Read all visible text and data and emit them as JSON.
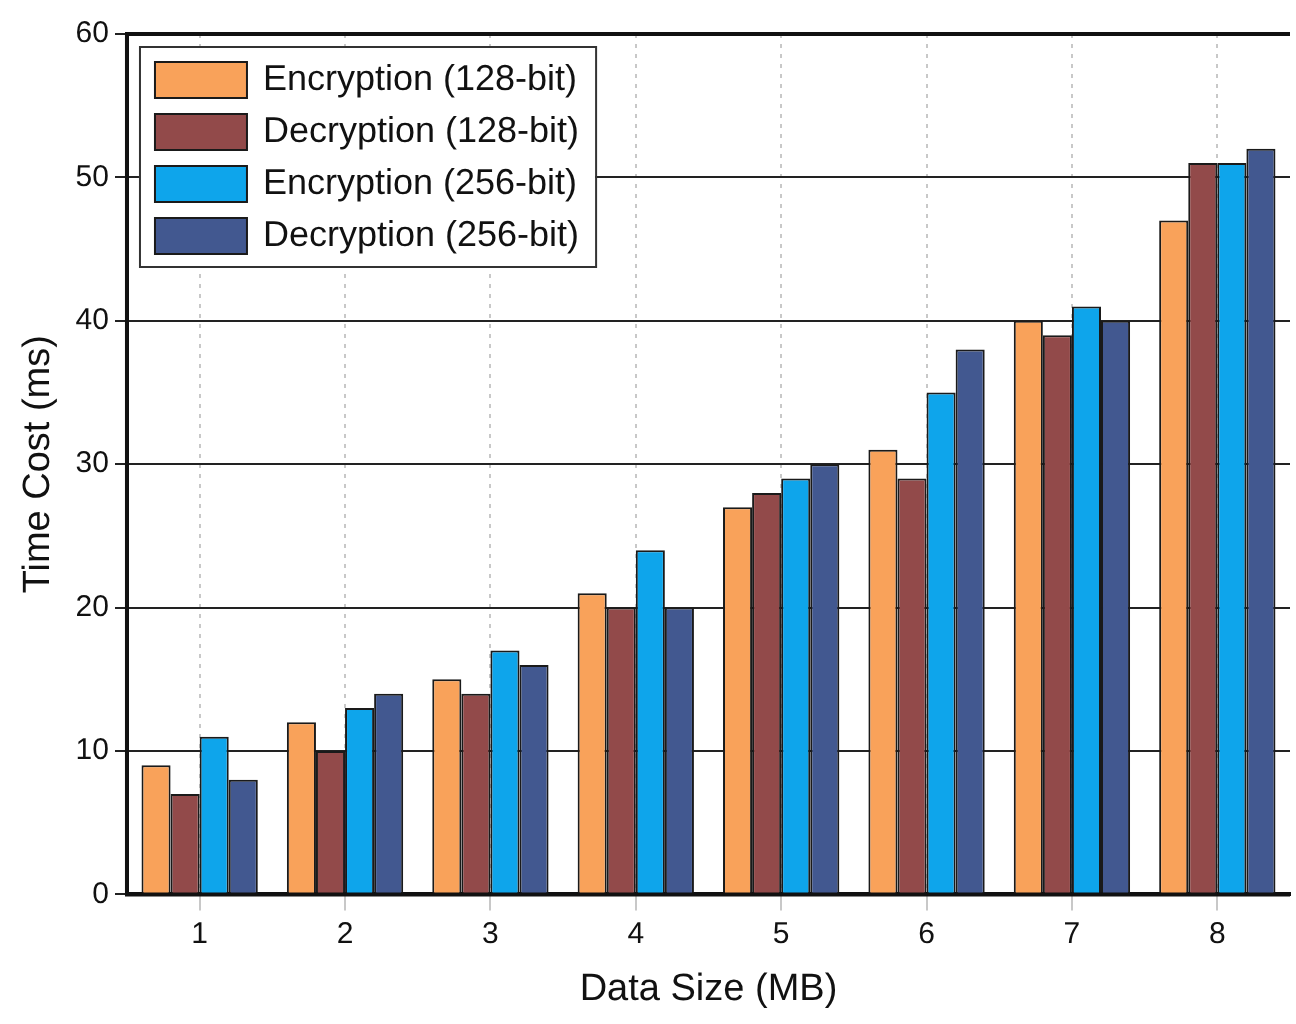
{
  "chart_data": {
    "type": "bar",
    "xlabel": "Data Size (MB)",
    "ylabel": "Time Cost (ms)",
    "categories": [
      "1",
      "2",
      "3",
      "4",
      "5",
      "6",
      "7",
      "8"
    ],
    "series": [
      {
        "name": "Encryption (128-bit)",
        "color": "#f9a25a",
        "values": [
          9,
          12,
          15,
          21,
          27,
          31,
          40,
          47
        ]
      },
      {
        "name": "Decryption (128-bit)",
        "color": "#924a4a",
        "values": [
          7,
          10,
          14,
          20,
          28,
          29,
          39,
          51
        ]
      },
      {
        "name": "Encryption (256-bit)",
        "color": "#0ea5eb",
        "values": [
          11,
          13,
          17,
          24,
          29,
          35,
          41,
          51
        ]
      },
      {
        "name": "Decryption (256-bit)",
        "color": "#425890",
        "values": [
          8,
          14,
          16,
          20,
          30,
          38,
          40,
          52
        ]
      }
    ],
    "ylim": [
      0,
      60
    ],
    "yticks": [
      0,
      10,
      20,
      30,
      40,
      50,
      60
    ],
    "grid": true,
    "legend": "top left"
  }
}
